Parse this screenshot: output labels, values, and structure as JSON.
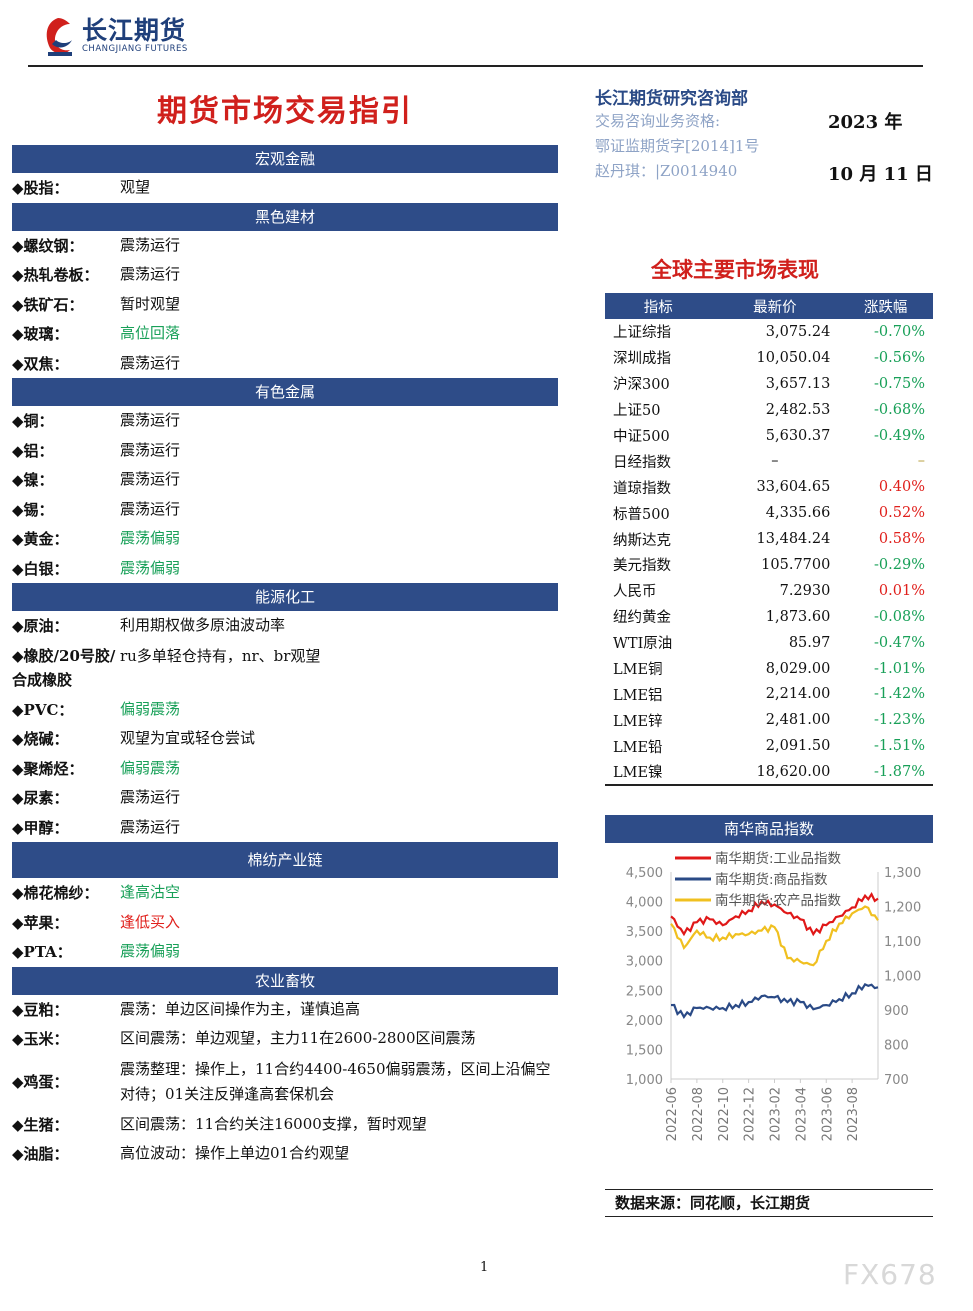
{
  "header": {
    "brand": "长江期货",
    "brand_en": "CHANGJIANG FUTURES",
    "title": "期货市场交易指引"
  },
  "info": {
    "dept": "长江期货研究咨询部",
    "line1": "交易咨询业务资格:",
    "line2": "鄂证监期货字[2014]1号",
    "line3": "赵丹琪：|Z0014940",
    "year": "2023 年",
    "date": "10 月 11 日"
  },
  "sections": [
    {
      "title": "宏观金融",
      "items": [
        {
          "label": "◆股指：",
          "value": "观望",
          "color": ""
        }
      ]
    },
    {
      "title": "黑色建材",
      "items": [
        {
          "label": "◆螺纹钢：",
          "value": "震荡运行",
          "color": ""
        },
        {
          "label": "◆热轧卷板：",
          "value": "震荡运行",
          "color": ""
        },
        {
          "label": "◆铁矿石：",
          "value": "暂时观望",
          "color": ""
        },
        {
          "label": "◆玻璃：",
          "value": "高位回落",
          "color": "green"
        },
        {
          "label": "◆双焦：",
          "value": "震荡运行",
          "color": ""
        }
      ]
    },
    {
      "title": "有色金属",
      "items": [
        {
          "label": "◆铜：",
          "value": "震荡运行",
          "color": ""
        },
        {
          "label": "◆铝：",
          "value": "震荡运行",
          "color": ""
        },
        {
          "label": "◆镍：",
          "value": "震荡运行",
          "color": ""
        },
        {
          "label": "◆锡：",
          "value": "震荡运行",
          "color": ""
        },
        {
          "label": "◆黄金：",
          "value": "震荡偏弱",
          "color": "green"
        },
        {
          "label": "◆白银：",
          "value": "震荡偏弱",
          "color": "green"
        }
      ]
    },
    {
      "title": "能源化工",
      "items": [
        {
          "label": "◆原油：",
          "value": "利用期权做多原油波动率",
          "color": ""
        },
        {
          "label": "◆橡胶/20号胶/合成橡胶",
          "value": "ru多单轻仓持有，nr、br观望",
          "color": "",
          "multi": true
        },
        {
          "label": "◆PVC：",
          "value": "偏弱震荡",
          "color": "green"
        },
        {
          "label": "◆烧碱：",
          "value": "观望为宜或轻仓尝试",
          "color": ""
        },
        {
          "label": "◆聚烯烃：",
          "value": "偏弱震荡",
          "color": "green"
        },
        {
          "label": "◆尿素：",
          "value": "震荡运行",
          "color": ""
        },
        {
          "label": "◆甲醇：",
          "value": "震荡运行",
          "color": ""
        }
      ]
    },
    {
      "title": "棉纺产业链",
      "items": [
        {
          "label": "◆棉花棉纱：",
          "value": "逢高沽空",
          "color": "green"
        },
        {
          "label": "◆苹果：",
          "value": "逢低买入",
          "color": "red"
        },
        {
          "label": "◆PTA：",
          "value": "震荡偏弱",
          "color": "green"
        }
      ]
    },
    {
      "title": "农业畜牧",
      "items": [
        {
          "label": "◆豆粕：",
          "value": "震荡：单边区间操作为主，谨慎追高",
          "color": ""
        },
        {
          "label": "◆玉米：",
          "value": "区间震荡：单边观望，主力11在2600-2800区间震荡",
          "color": ""
        },
        {
          "label": "◆鸡蛋：",
          "value": "震荡整理：操作上，11合约4400-4650偏弱震荡，区间上沿偏空对待；01关注反弹逢高套保机会",
          "color": "",
          "multi": true
        },
        {
          "label": "◆生猪：",
          "value": "区间震荡：11合约关注16000支撑，暂时观望",
          "color": ""
        },
        {
          "label": "◆油脂：",
          "value": "高位波动：操作上单边01合约观望",
          "color": ""
        }
      ]
    }
  ],
  "market": {
    "title": "全球主要市场表现",
    "headers": [
      "指标",
      "最新价",
      "涨跌幅"
    ],
    "rows": [
      [
        "上证综指",
        "3,075.24",
        "-0.70%",
        "green"
      ],
      [
        "深圳成指",
        "10,050.04",
        "-0.56%",
        "green"
      ],
      [
        "沪深300",
        "3,657.13",
        "-0.75%",
        "green"
      ],
      [
        "上证50",
        "2,482.53",
        "-0.68%",
        "green"
      ],
      [
        "中证500",
        "5,630.37",
        "-0.49%",
        "green"
      ],
      [
        "日经指数",
        "–",
        "–",
        "olive"
      ],
      [
        "道琼指数",
        "33,604.65",
        "0.40%",
        "red"
      ],
      [
        "标普500",
        "4,335.66",
        "0.52%",
        "red"
      ],
      [
        "纳斯达克",
        "13,484.24",
        "0.58%",
        "red"
      ],
      [
        "美元指数",
        "105.7700",
        "-0.29%",
        "green"
      ],
      [
        "人民币",
        "7.2930",
        "0.01%",
        "red"
      ],
      [
        "纽约黄金",
        "1,873.60",
        "-0.08%",
        "green"
      ],
      [
        "WTI原油",
        "85.97",
        "-0.47%",
        "green"
      ],
      [
        "LME铜",
        "8,029.00",
        "-1.01%",
        "green"
      ],
      [
        "LME铝",
        "2,214.00",
        "-1.42%",
        "green"
      ],
      [
        "LME锌",
        "2,481.00",
        "-1.23%",
        "green"
      ],
      [
        "LME铅",
        "2,091.50",
        "-1.51%",
        "green"
      ],
      [
        "LME镍",
        "18,620.00",
        "-1.87%",
        "green"
      ]
    ]
  },
  "chart_data": {
    "type": "line",
    "title": "南华商品指数",
    "x": [
      "2022-06",
      "2022-07",
      "2022-08",
      "2022-09",
      "2022-10",
      "2022-11",
      "2022-12",
      "2023-01",
      "2023-02",
      "2023-03",
      "2023-04",
      "2023-05",
      "2023-06",
      "2023-07",
      "2023-08",
      "2023-09",
      "2023-10"
    ],
    "xtick_labels": [
      "2022-06",
      "2022-08",
      "2022-10",
      "2022-12",
      "2023-02",
      "2023-04",
      "2023-06",
      "2023-08"
    ],
    "yleft": {
      "min": 1000,
      "max": 4500,
      "ticks": [
        "1,000",
        "1,500",
        "2,000",
        "2,500",
        "3,000",
        "3,500",
        "4,000",
        "4,500"
      ]
    },
    "yright": {
      "min": 700,
      "max": 1300,
      "ticks": [
        "700",
        "800",
        "900",
        "1,000",
        "1,100",
        "1,200",
        "1,300"
      ]
    },
    "legend": "top",
    "series": [
      {
        "name": "南华期货:工业品指数",
        "axis": "left",
        "color": "#e01818",
        "values": [
          3750,
          3450,
          3650,
          3700,
          3600,
          3750,
          3850,
          4000,
          3950,
          3800,
          3700,
          3450,
          3600,
          3750,
          3900,
          4100,
          4050
        ]
      },
      {
        "name": "南华期货:商品指数",
        "axis": "left",
        "color": "#2a4a86",
        "values": [
          2250,
          2050,
          2200,
          2200,
          2200,
          2250,
          2300,
          2400,
          2380,
          2300,
          2300,
          2180,
          2250,
          2350,
          2450,
          2600,
          2550
        ]
      },
      {
        "name": "南华期货:农产品指数",
        "axis": "right",
        "color": "#f0c020",
        "values": [
          1150,
          1080,
          1130,
          1110,
          1110,
          1120,
          1120,
          1130,
          1140,
          1050,
          1040,
          1030,
          1100,
          1150,
          1180,
          1200,
          1160
        ]
      }
    ]
  },
  "source": "数据来源：同花顺，长江期货",
  "page_number": "1",
  "watermark": "FX678"
}
